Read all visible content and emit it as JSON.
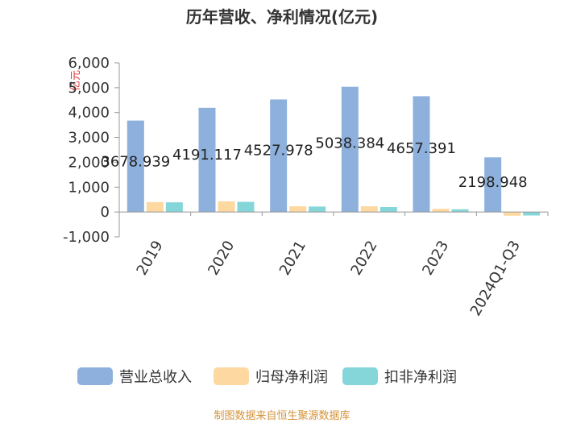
{
  "chart_data": {
    "type": "bar",
    "title": "历年营收、净利情况(亿元)",
    "unit_label": "亿元",
    "categories": [
      "2019",
      "2020",
      "2021",
      "2022",
      "2023",
      "2024Q1-Q3"
    ],
    "series": [
      {
        "name": "营业总收入",
        "color": "#8eb0dc",
        "values": [
          3678.939,
          4191.117,
          4527.978,
          5038.384,
          4657.391,
          2198.948
        ],
        "labels": [
          "3678.939",
          "4191.117",
          "4527.978",
          "5038.384",
          "4657.391",
          "2198.948"
        ]
      },
      {
        "name": "归母净利润",
        "color": "#fdd8a0",
        "values": [
          400,
          430,
          230,
          230,
          130,
          -150
        ]
      },
      {
        "name": "扣非净利润",
        "color": "#84d6d8",
        "values": [
          390,
          410,
          220,
          200,
          110,
          -140
        ]
      }
    ],
    "yticks": [
      "6,000",
      "5,000",
      "4,000",
      "3,000",
      "2,000",
      "1,000",
      "0",
      "-1,000"
    ],
    "ylim": [
      -1000,
      6000
    ],
    "grid": false,
    "legend_position": "bottom"
  },
  "source": "制图数据来自恒生聚源数据库"
}
